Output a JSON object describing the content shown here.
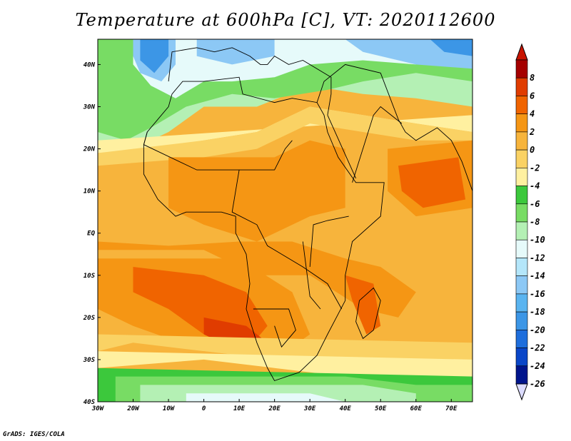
{
  "title": "Temperature at 600hPa [C], VT: 2020112600",
  "credit": "GrADS: IGES/COLA",
  "map": {
    "lon_range": [
      -30,
      76
    ],
    "lat_range": [
      -40,
      46
    ],
    "x_ticks": [
      {
        "lon": -30,
        "label": "30W"
      },
      {
        "lon": -20,
        "label": "20W"
      },
      {
        "lon": -10,
        "label": "10W"
      },
      {
        "lon": 0,
        "label": "0"
      },
      {
        "lon": 10,
        "label": "10E"
      },
      {
        "lon": 20,
        "label": "20E"
      },
      {
        "lon": 30,
        "label": "30E"
      },
      {
        "lon": 40,
        "label": "40E"
      },
      {
        "lon": 50,
        "label": "50E"
      },
      {
        "lon": 60,
        "label": "60E"
      },
      {
        "lon": 70,
        "label": "70E"
      }
    ],
    "y_ticks": [
      {
        "lat": 40,
        "label": "40N"
      },
      {
        "lat": 30,
        "label": "30N"
      },
      {
        "lat": 20,
        "label": "20N"
      },
      {
        "lat": 10,
        "label": "10N"
      },
      {
        "lat": 0,
        "label": "EQ"
      },
      {
        "lat": -10,
        "label": "10S"
      },
      {
        "lat": -20,
        "label": "20S"
      },
      {
        "lat": -30,
        "label": "30S"
      },
      {
        "lat": -40,
        "label": "40S"
      }
    ]
  },
  "colorbar": {
    "levels": [
      {
        "label": "8",
        "color": "#a50000"
      },
      {
        "label": "6",
        "color": "#e03c00"
      },
      {
        "label": "4",
        "color": "#f06400"
      },
      {
        "label": "2",
        "color": "#f59614"
      },
      {
        "label": "0",
        "color": "#f7b43c"
      },
      {
        "label": "-2",
        "color": "#fad264"
      },
      {
        "label": "-4",
        "color": "#fff0a0"
      },
      {
        "label": "-6",
        "color": "#3cc83c"
      },
      {
        "label": "-8",
        "color": "#78dc64"
      },
      {
        "label": "-10",
        "color": "#b4f0b4"
      },
      {
        "label": "-12",
        "color": "#e6fafa"
      },
      {
        "label": "-14",
        "color": "#b4e6fa"
      },
      {
        "label": "-16",
        "color": "#8cc8f5"
      },
      {
        "label": "-18",
        "color": "#5ab4f0"
      },
      {
        "label": "-20",
        "color": "#3c96e6"
      },
      {
        "label": "-22",
        "color": "#1e6edc"
      },
      {
        "label": "-24",
        "color": "#0a46c8"
      },
      {
        "label": "-26",
        "color": "#00148c"
      }
    ],
    "top_arrow_color": "#c81400",
    "bottom_arrow_color": "#dcdcff"
  },
  "field_colors": {
    "land_cold_blue": "#3c96e6",
    "light_blue": "#8cc8f5",
    "pale": "#e6fafa",
    "pale_green": "#b4f0b4",
    "green": "#78dc64",
    "dark_green": "#3cc83c",
    "yellow": "#fff0a0",
    "light_orange": "#fad264",
    "orange": "#f7b43c",
    "deep_orange": "#f59614",
    "red_orange": "#f06400",
    "red": "#e03c00"
  }
}
